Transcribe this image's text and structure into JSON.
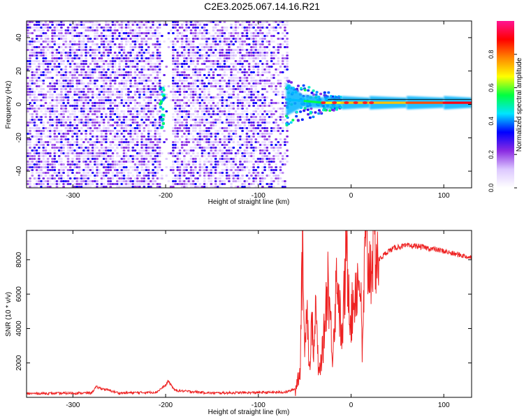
{
  "title": "C2E3.2025.067.14.16.R21",
  "chart_data": [
    {
      "type": "heatmap",
      "xlabel": "Height of straight line (km)",
      "ylabel": "Frequency (Hz)",
      "xlim": [
        -350,
        130
      ],
      "ylim": [
        -50,
        50
      ],
      "x_ticks": [
        -300,
        -200,
        -100,
        0,
        100
      ],
      "y_ticks": [
        -40,
        -20,
        0,
        20,
        40
      ],
      "colorbar": {
        "label": "Normalized spectral amplitude",
        "range": [
          0,
          1
        ],
        "ticks": [
          "0.0",
          "0.2",
          "0.4",
          "0.6",
          "0.8"
        ],
        "colors": [
          "#ffffff",
          "#dcc8ff",
          "#8a2be2",
          "#0000ff",
          "#00e5ff",
          "#00ff40",
          "#ffff00",
          "#ff8800",
          "#ff0000",
          "#ff1493"
        ]
      },
      "features": {
        "noise_region_x": [
          -350,
          -68
        ],
        "quiet_gap_x": [
          -207,
          -195
        ],
        "noise_burst_x": -205,
        "signal_track": [
          {
            "x": -70,
            "freq": 3,
            "amp": 0.35
          },
          {
            "x": -50,
            "freq": 2,
            "amp": 0.5
          },
          {
            "x": -30,
            "freq": 1,
            "amp": 0.6
          },
          {
            "x": -10,
            "freq": 1,
            "amp": 0.75
          },
          {
            "x": 20,
            "freq": 1,
            "amp": 0.7
          },
          {
            "x": 60,
            "freq": 1,
            "amp": 0.75
          },
          {
            "x": 100,
            "freq": 1,
            "amp": 0.9
          },
          {
            "x": 130,
            "freq": 1,
            "amp": 0.9
          }
        ]
      }
    },
    {
      "type": "line",
      "xlabel": "Height of straight line (km)",
      "ylabel": "SNR (10 * v/v)",
      "xlim": [
        -350,
        130
      ],
      "ylim": [
        0,
        9700
      ],
      "x_ticks": [
        -300,
        -200,
        -100,
        0,
        100
      ],
      "y_ticks": [
        2000,
        4000,
        6000,
        8000
      ],
      "series": [
        {
          "color": "#ee2222",
          "x": [
            -350,
            -300,
            -280,
            -275,
            -250,
            -210,
            -200,
            -197,
            -190,
            -150,
            -100,
            -70,
            -60,
            -55,
            -52,
            -50,
            -48,
            -45,
            -42,
            -40,
            -38,
            -35,
            -30,
            -25,
            -20,
            -15,
            -10,
            -5,
            0,
            5,
            10,
            12,
            15,
            20,
            25,
            30,
            40,
            50,
            60,
            70,
            80,
            90,
            100,
            110,
            120,
            130
          ],
          "y": [
            220,
            240,
            260,
            600,
            250,
            300,
            700,
            950,
            400,
            250,
            280,
            300,
            500,
            1600,
            9600,
            2000,
            6500,
            1500,
            4500,
            2500,
            5500,
            1200,
            3000,
            7000,
            2500,
            7500,
            3000,
            8500,
            4500,
            6500,
            7000,
            2200,
            8500,
            7500,
            9000,
            8000,
            8500,
            8750,
            8800,
            8800,
            8700,
            8600,
            8500,
            8350,
            8250,
            8100
          ]
        }
      ]
    }
  ]
}
